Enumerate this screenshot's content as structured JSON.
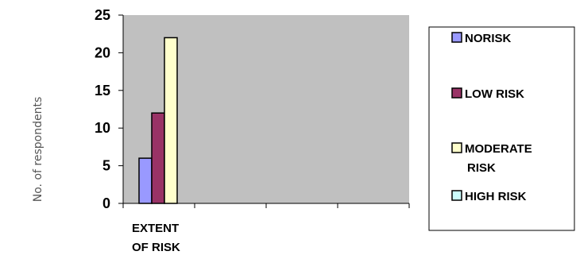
{
  "chart_data": {
    "type": "bar",
    "categories": [
      "EXTENT OF RISK"
    ],
    "category_lines": [
      [
        "EXTENT",
        "OF RISK"
      ]
    ],
    "series": [
      {
        "name": "NORISK",
        "values": [
          6
        ],
        "color": "#9999ff"
      },
      {
        "name": "LOW RISK",
        "values": [
          12
        ],
        "color": "#993366"
      },
      {
        "name": "MODERATE RISK",
        "values": [
          22
        ],
        "color": "#ffffcc"
      },
      {
        "name": "HIGH RISK",
        "values": [
          0
        ],
        "color": "#ccffff"
      }
    ],
    "legend_lines": [
      [
        "NORISK"
      ],
      [
        "LOW RISK"
      ],
      [
        "MODERATE",
        "RISK"
      ],
      [
        "HIGH RISK"
      ]
    ],
    "ylabel": "No. of respondents",
    "ylim": [
      0,
      25
    ],
    "yticks": [
      0,
      5,
      10,
      15,
      20,
      25
    ],
    "x_slots": 4,
    "plot_background": "#c0c0c0",
    "grid": false,
    "legend_position": "right"
  }
}
